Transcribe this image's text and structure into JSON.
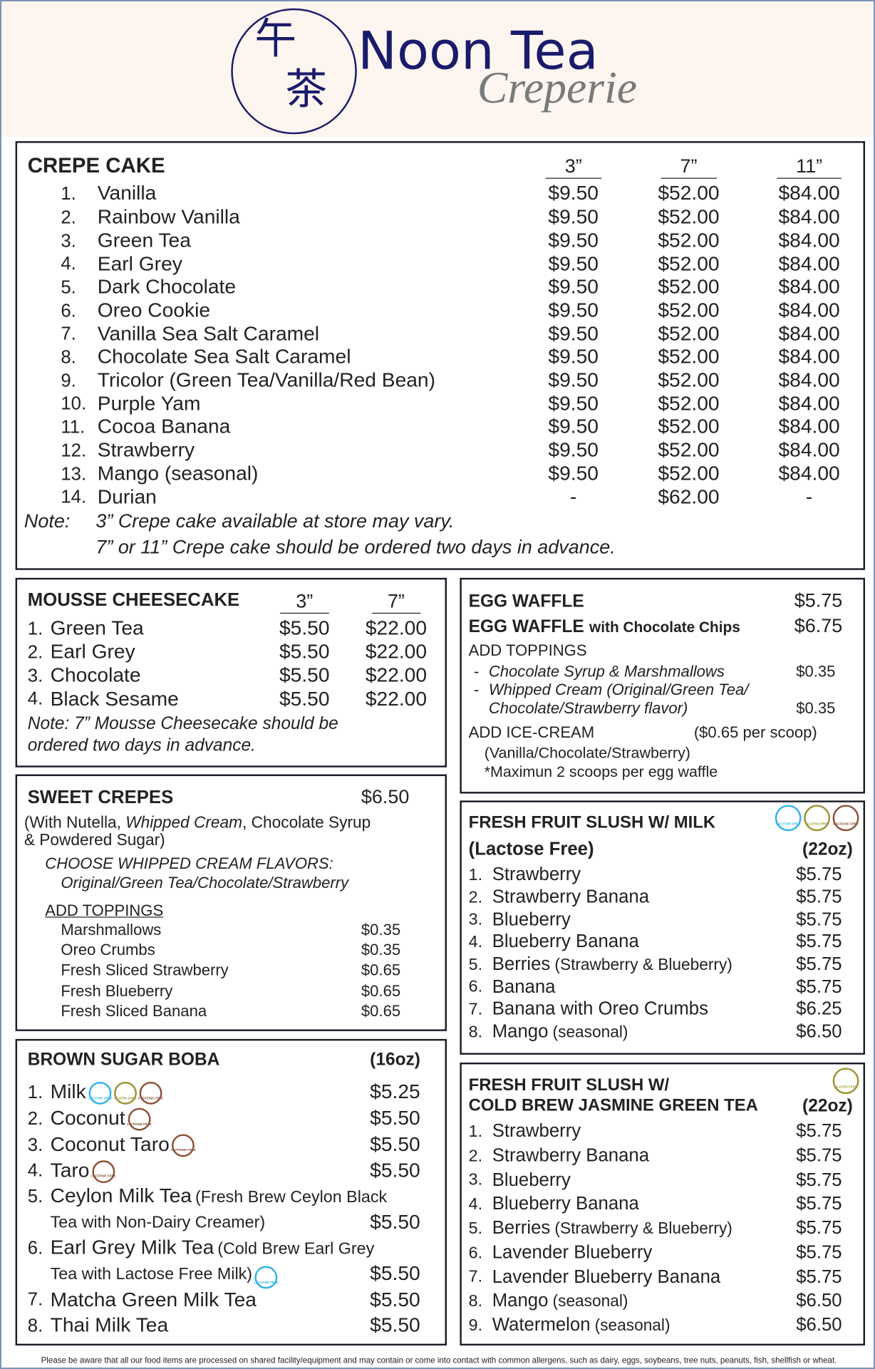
{
  "header": {
    "logo_top": "午",
    "logo_bottom": "茶",
    "brand": "Noon Tea",
    "tagline": "Creperie"
  },
  "badges": [
    {
      "label": "LACTOSE FREE",
      "color": "#2fb4e6"
    },
    {
      "label": "GLUTEN FREE",
      "color": "#9c9433"
    },
    {
      "label": "CAFFEINE FREE",
      "color": "#8a5238"
    }
  ],
  "crepe_cake": {
    "title": "CREPE CAKE",
    "sizes": [
      "3”",
      "7”",
      "11”"
    ],
    "items": [
      {
        "no": "1.",
        "name": "Vanilla",
        "prices": [
          "$9.50",
          "$52.00",
          "$84.00"
        ]
      },
      {
        "no": "2.",
        "name": "Rainbow Vanilla",
        "prices": [
          "$9.50",
          "$52.00",
          "$84.00"
        ]
      },
      {
        "no": "3.",
        "name": "Green Tea",
        "prices": [
          "$9.50",
          "$52.00",
          "$84.00"
        ]
      },
      {
        "no": "4.",
        "name": "Earl Grey",
        "prices": [
          "$9.50",
          "$52.00",
          "$84.00"
        ]
      },
      {
        "no": "5.",
        "name": "Dark Chocolate",
        "prices": [
          "$9.50",
          "$52.00",
          "$84.00"
        ]
      },
      {
        "no": "6.",
        "name": "Oreo Cookie",
        "prices": [
          "$9.50",
          "$52.00",
          "$84.00"
        ]
      },
      {
        "no": "7.",
        "name": "Vanilla Sea Salt Caramel",
        "prices": [
          "$9.50",
          "$52.00",
          "$84.00"
        ]
      },
      {
        "no": "8.",
        "name": "Chocolate Sea Salt Caramel",
        "prices": [
          "$9.50",
          "$52.00",
          "$84.00"
        ]
      },
      {
        "no": "9.",
        "name": "Tricolor (Green Tea/Vanilla/Red Bean)",
        "prices": [
          "$9.50",
          "$52.00",
          "$84.00"
        ]
      },
      {
        "no": "10.",
        "name": "Purple Yam",
        "prices": [
          "$9.50",
          "$52.00",
          "$84.00"
        ]
      },
      {
        "no": "11.",
        "name": "Cocoa Banana",
        "prices": [
          "$9.50",
          "$52.00",
          "$84.00"
        ]
      },
      {
        "no": "12.",
        "name": "Strawberry",
        "prices": [
          "$9.50",
          "$52.00",
          "$84.00"
        ]
      },
      {
        "no": "13.",
        "name": "Mango (seasonal)",
        "prices": [
          "$9.50",
          "$52.00",
          "$84.00"
        ]
      },
      {
        "no": "14.",
        "name": "Durian",
        "prices": [
          "-",
          "$62.00",
          "-"
        ]
      }
    ],
    "note_label": "Note:",
    "notes": [
      "3” Crepe cake available at store may vary.",
      "7” or 11” Crepe cake should be ordered two days in advance."
    ]
  },
  "mousse": {
    "title": "MOUSSE CHEESECAKE",
    "sizes": [
      "3”",
      "7”"
    ],
    "items": [
      {
        "no": "1.",
        "name": "Green Tea",
        "prices": [
          "$5.50",
          "$22.00"
        ]
      },
      {
        "no": "2.",
        "name": "Earl Grey",
        "prices": [
          "$5.50",
          "$22.00"
        ]
      },
      {
        "no": "3.",
        "name": "Chocolate",
        "prices": [
          "$5.50",
          "$22.00"
        ]
      },
      {
        "no": "4.",
        "name": "Black Sesame",
        "prices": [
          "$5.50",
          "$22.00"
        ]
      }
    ],
    "notes": [
      "Note: 7” Mousse Cheesecake should be",
      "ordered two days in advance."
    ]
  },
  "egg_waffle": {
    "items": [
      {
        "name": "EGG WAFFLE",
        "price": "$5.75"
      },
      {
        "name": "EGG WAFFLE",
        "suffix": "with Chocolate Chips",
        "price": "$6.75"
      }
    ],
    "toppings_title": "ADD TOPPINGS",
    "toppings": [
      {
        "bullet": "-",
        "lines": [
          "Chocolate Syrup & Marshmallows"
        ],
        "price": "$0.35"
      },
      {
        "bullet": "-",
        "lines": [
          "Whipped Cream (Original/Green Tea/",
          "Chocolate/Strawberry flavor)"
        ],
        "price": "$0.35"
      }
    ],
    "ice_cream": {
      "title": "ADD ICE-CREAM",
      "price_note": "($0.65 per scoop)",
      "lines": [
        "(Vanilla/Chocolate/Strawberry)",
        "*Maximun 2 scoops per egg waffle"
      ]
    }
  },
  "sweet_crepes": {
    "title": "SWEET CREPES",
    "price": "$6.50",
    "description": [
      [
        {
          "text": "(With Nutella, "
        },
        {
          "text": "Whipped Cream",
          "italic": true
        },
        {
          "text": ", Chocolate Syrup"
        }
      ],
      [
        {
          "text": "& Powdered Sugar)"
        }
      ]
    ],
    "flavors_title": "CHOOSE WHIPPED CREAM FLAVORS:",
    "flavors": "Original/Green Tea/Chocolate/Strawberry",
    "toppings_title": "ADD TOPPINGS",
    "toppings": [
      {
        "name": "Marshmallows",
        "price": "$0.35"
      },
      {
        "name": "Oreo Crumbs",
        "price": "$0.35"
      },
      {
        "name": "Fresh Sliced Strawberry",
        "price": "$0.65"
      },
      {
        "name": "Fresh Blueberry",
        "price": "$0.65"
      },
      {
        "name": "Fresh Sliced Banana",
        "price": "$0.65"
      }
    ]
  },
  "slush_milk": {
    "title_lines": [
      "FRESH FRUIT SLUSH W/ MILK"
    ],
    "subtitle": "(Lactose Free)",
    "size": "(22oz)",
    "badges": [
      "LACTOSE FREE",
      "GLUTEN FREE",
      "CAFFEINE FREE"
    ],
    "items": [
      {
        "no": "1.",
        "name": "Strawberry",
        "price": "$5.75"
      },
      {
        "no": "2.",
        "name": "Strawberry Banana",
        "price": "$5.75"
      },
      {
        "no": "3.",
        "name": "Blueberry",
        "price": "$5.75"
      },
      {
        "no": "4.",
        "name": "Blueberry Banana",
        "price": "$5.75"
      },
      {
        "no": "5.",
        "name": "Berries",
        "note": "(Strawberry & Blueberry)",
        "price": "$5.75"
      },
      {
        "no": "6.",
        "name": "Banana",
        "price": "$5.75"
      },
      {
        "no": "7.",
        "name": "Banana with Oreo Crumbs",
        "price": "$6.25"
      },
      {
        "no": "8.",
        "name": "Mango",
        "note": "(seasonal)",
        "price": "$6.50"
      }
    ]
  },
  "boba": {
    "title": "BROWN SUGAR BOBA",
    "size": "(16oz)",
    "items": [
      {
        "no": "1.",
        "name": "Milk",
        "badges": [
          "LACTOSE FREE",
          "GLUTEN FREE",
          "CAFFEINE FREE"
        ],
        "price": "$5.25"
      },
      {
        "no": "2.",
        "name": "Coconut",
        "badges": [
          "CAFFEINE FREE"
        ],
        "price": "$5.50"
      },
      {
        "no": "3.",
        "name": "Coconut Taro",
        "badges": [
          "CAFFEINE FREE"
        ],
        "price": "$5.50"
      },
      {
        "no": "4.",
        "name": "Taro",
        "badges": [
          "CAFFEINE FREE"
        ],
        "price": "$5.50"
      },
      {
        "no": "5.",
        "name": "Ceylon Milk Tea",
        "note_lines": [
          "(Fresh Brew Ceylon Black",
          "Tea with Non-Dairy Creamer)"
        ],
        "price": "$5.50"
      },
      {
        "no": "6.",
        "name": "Earl Grey Milk Tea",
        "note_lines": [
          "(Cold Brew Earl Grey",
          "Tea with Lactose Free Milk)"
        ],
        "badges": [
          "LACTOSE FREE"
        ],
        "price": "$5.50"
      },
      {
        "no": "7.",
        "name": "Matcha Green Milk Tea",
        "price": "$5.50"
      },
      {
        "no": "8.",
        "name": "Thai Milk Tea",
        "price": "$5.50"
      }
    ]
  },
  "slush_green_tea": {
    "title_lines": [
      "FRESH FRUIT SLUSH W/",
      "COLD BREW JASMINE GREEN TEA"
    ],
    "size": "(22oz)",
    "badges": [
      "GLUTEN FREE"
    ],
    "items": [
      {
        "no": "1.",
        "name": "Strawberry",
        "price": "$5.75"
      },
      {
        "no": "2.",
        "name": "Strawberry Banana",
        "price": "$5.75"
      },
      {
        "no": "3.",
        "name": "Blueberry",
        "price": "$5.75"
      },
      {
        "no": "4.",
        "name": "Blueberry Banana",
        "price": "$5.75"
      },
      {
        "no": "5.",
        "name": "Berries",
        "note": "(Strawberry & Blueberry)",
        "price": "$5.75"
      },
      {
        "no": "6.",
        "name": "Lavender Blueberry",
        "price": "$5.75"
      },
      {
        "no": "7.",
        "name": "Lavender Blueberry Banana",
        "price": "$5.75"
      },
      {
        "no": "8.",
        "name": "Mango",
        "note": "(seasonal)",
        "price": "$6.50"
      },
      {
        "no": "9.",
        "name": "Watermelon",
        "note": "(seasonal)",
        "price": "$6.50"
      }
    ]
  },
  "footer": {
    "disclaimer": "Please be aware that all our food items are processed on shared facility/equipment and may contain or come into contact with common allergens, such as dairy, eggs, soybeans, tree nuts, peanuts, fish, shellfish or wheat."
  }
}
